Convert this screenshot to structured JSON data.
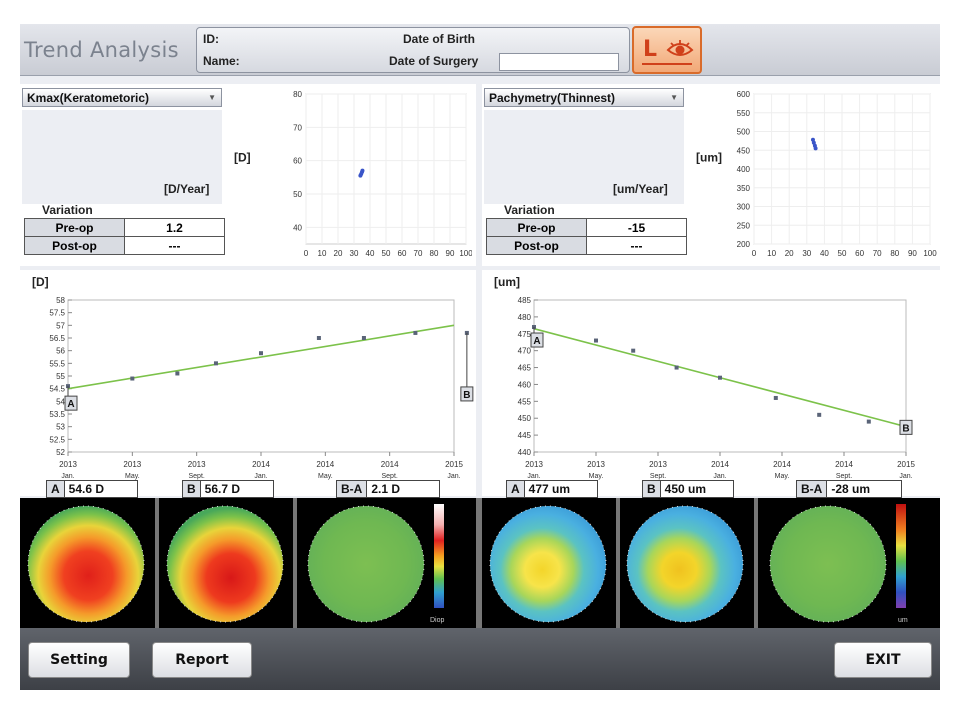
{
  "header": {
    "title": "Trend Analysis",
    "id_label": "ID:",
    "name_label": "Name:",
    "dob_label": "Date of Birth",
    "dos_label": "Date of Surgery",
    "dos_value": "",
    "eye": "L",
    "eye_icon": "eye-icon"
  },
  "left": {
    "dropdown": "Kmax(Keratometoric)",
    "rate_unit": "[D/Year]",
    "variation_title": "Variation",
    "rows": [
      {
        "label": "Pre-op",
        "value": "1.2"
      },
      {
        "label": "Post-op",
        "value": "---"
      }
    ],
    "scatter_unit": "[D]",
    "trend_unit": "[D]",
    "point_a": "A",
    "point_b": "B"
  },
  "right": {
    "dropdown": "Pachymetry(Thinnest)",
    "rate_unit": "[um/Year]",
    "variation_title": "Variation",
    "rows": [
      {
        "label": "Pre-op",
        "value": "-15"
      },
      {
        "label": "Post-op",
        "value": "---"
      }
    ],
    "scatter_unit": "[um]",
    "trend_unit": "[um]",
    "point_a": "A",
    "point_b": "B"
  },
  "maps": [
    {
      "tag": "A",
      "value": "54.6 D"
    },
    {
      "tag": "B",
      "value": "56.7 D"
    },
    {
      "tag": "B-A",
      "value": "2.1 D"
    },
    {
      "tag": "A",
      "value": "477 um"
    },
    {
      "tag": "B",
      "value": "450 um"
    },
    {
      "tag": "B-A",
      "value": "-28 um"
    }
  ],
  "map_scale_unit_left": "Diop",
  "map_scale_unit_right": "um",
  "footer": {
    "setting": "Setting",
    "report": "Report",
    "exit": "EXIT"
  },
  "chart_data": [
    {
      "type": "scatter",
      "name_hint": "kmax-age-scatter",
      "ylabel": "[D]",
      "xlim": [
        0,
        100
      ],
      "ylim": [
        35,
        80
      ],
      "xticks": [
        0,
        10,
        20,
        30,
        40,
        50,
        60,
        70,
        80,
        90,
        100
      ],
      "yticks": [
        40,
        50,
        60,
        70,
        80
      ],
      "points": [
        {
          "x": 34,
          "y": 55.5
        },
        {
          "x": 34.5,
          "y": 56.0
        },
        {
          "x": 35,
          "y": 56.6
        },
        {
          "x": 35.3,
          "y": 57.0
        }
      ]
    },
    {
      "type": "scatter",
      "name_hint": "pachy-age-scatter",
      "ylabel": "[um]",
      "xlim": [
        0,
        100
      ],
      "ylim": [
        200,
        600
      ],
      "xticks": [
        0,
        10,
        20,
        30,
        40,
        50,
        60,
        70,
        80,
        90,
        100
      ],
      "yticks": [
        200,
        250,
        300,
        350,
        400,
        450,
        500,
        550,
        600
      ],
      "points": [
        {
          "x": 33.5,
          "y": 478
        },
        {
          "x": 34,
          "y": 470
        },
        {
          "x": 34.6,
          "y": 462
        },
        {
          "x": 35,
          "y": 455
        }
      ]
    },
    {
      "type": "line",
      "name_hint": "kmax-trend",
      "ylabel": "[D]",
      "ylim": [
        52,
        58
      ],
      "yticks": [
        52,
        52.5,
        53,
        53.5,
        54,
        54.5,
        55,
        55.5,
        56,
        56.5,
        57,
        57.5,
        58
      ],
      "xtick_labels": [
        [
          "2013",
          "Jan."
        ],
        [
          "2013",
          "May."
        ],
        [
          "2013",
          "Sept."
        ],
        [
          "2014",
          "Jan."
        ],
        [
          "2014",
          "May."
        ],
        [
          "2014",
          "Sept."
        ],
        [
          "2015",
          "Jan."
        ]
      ],
      "points": [
        54.6,
        54.9,
        55.1,
        55.5,
        55.9,
        56.5,
        56.5,
        56.7,
        56.7
      ],
      "point_x": [
        0.0,
        1.0,
        1.7,
        2.3,
        3.0,
        3.9,
        4.6,
        5.4,
        6.2
      ],
      "fit_start": 54.5,
      "fit_end": 57.0
    },
    {
      "type": "line",
      "name_hint": "pachy-trend",
      "ylabel": "[um]",
      "ylim": [
        440,
        485
      ],
      "yticks": [
        440,
        445,
        450,
        455,
        460,
        465,
        470,
        475,
        480,
        485
      ],
      "xtick_labels": [
        [
          "2013",
          "Jan."
        ],
        [
          "2013",
          "May."
        ],
        [
          "2013",
          "Sept."
        ],
        [
          "2014",
          "Jan."
        ],
        [
          "2014",
          "May."
        ],
        [
          "2014",
          "Sept."
        ],
        [
          "2015",
          "Jan."
        ]
      ],
      "points": [
        477,
        473,
        470,
        465,
        462,
        456,
        451,
        449,
        447
      ],
      "point_x": [
        0.0,
        1.0,
        1.6,
        2.3,
        3.0,
        3.9,
        4.6,
        5.4,
        6.0
      ],
      "fit_start": 476.5,
      "fit_end": 447.5
    }
  ]
}
